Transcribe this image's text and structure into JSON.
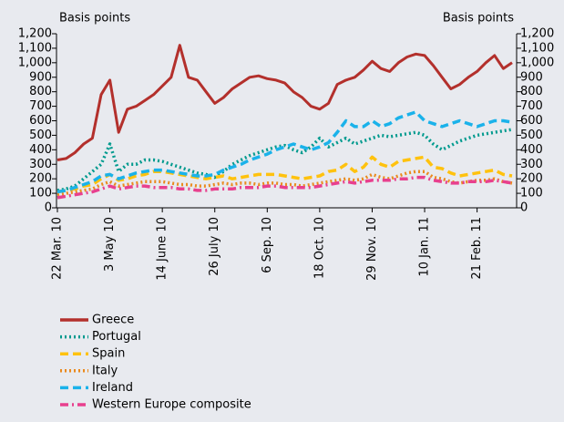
{
  "chart_data": {
    "type": "line",
    "ylabel": "Basis points",
    "y2label": "Basis points",
    "categories": [
      "22 Mar. 10",
      null,
      null,
      null,
      null,
      null,
      "3 May 10",
      null,
      null,
      null,
      null,
      null,
      "14 June 10",
      null,
      null,
      null,
      null,
      null,
      "26 July 10",
      null,
      null,
      null,
      null,
      null,
      "6 Sep. 10",
      null,
      null,
      null,
      null,
      null,
      "18 Oct. 10",
      null,
      null,
      null,
      null,
      null,
      "29 Nov. 10",
      null,
      null,
      null,
      null,
      null,
      "10 Jan. 11",
      null,
      null,
      null,
      null,
      null,
      "21 Feb. 11",
      null,
      null,
      null,
      null
    ],
    "ylim": [
      0,
      1200
    ],
    "yticks": [
      0,
      100,
      200,
      300,
      400,
      500,
      600,
      700,
      800,
      900,
      {
        "value": 1000,
        "label": "1,000"
      },
      {
        "value": 1100,
        "label": "1,100"
      },
      {
        "value": 1200,
        "label": "1,200"
      }
    ],
    "y2lim": [
      0,
      1200
    ],
    "y2ticks": [
      0,
      100,
      200,
      300,
      400,
      500,
      600,
      700,
      800,
      900,
      {
        "value": 1000,
        "label": "1,000"
      },
      {
        "value": 1100,
        "label": "1,100"
      },
      {
        "value": 1200,
        "label": "1,200"
      }
    ],
    "grid": false,
    "legend": "bottom-left",
    "series": [
      {
        "name": "Greece",
        "color": "#b3302c",
        "dash": "solid",
        "values": [
          330,
          340,
          380,
          440,
          480,
          780,
          880,
          520,
          680,
          700,
          740,
          780,
          840,
          900,
          1120,
          900,
          880,
          800,
          720,
          760,
          820,
          860,
          900,
          910,
          890,
          880,
          860,
          800,
          760,
          700,
          680,
          720,
          850,
          880,
          900,
          950,
          1010,
          960,
          940,
          1000,
          1040,
          1060,
          1050,
          980,
          900,
          820,
          850,
          900,
          940,
          1000,
          1050,
          960,
          1000
        ]
      },
      {
        "name": "Portugal",
        "color": "#009a8e",
        "dash": "dotted",
        "values": [
          120,
          130,
          150,
          200,
          250,
          300,
          440,
          250,
          300,
          300,
          330,
          330,
          320,
          300,
          280,
          260,
          240,
          230,
          210,
          250,
          300,
          330,
          360,
          380,
          400,
          420,
          430,
          400,
          380,
          420,
          480,
          420,
          450,
          480,
          440,
          460,
          480,
          500,
          490,
          500,
          510,
          520,
          500,
          440,
          400,
          430,
          460,
          480,
          500,
          510,
          520,
          530,
          540
        ]
      },
      {
        "name": "Spain",
        "color": "#ffc20e",
        "dash": "dashed",
        "values": [
          110,
          120,
          130,
          150,
          160,
          200,
          230,
          190,
          200,
          220,
          230,
          250,
          250,
          240,
          230,
          220,
          210,
          200,
          210,
          220,
          200,
          210,
          220,
          230,
          230,
          230,
          220,
          210,
          200,
          210,
          220,
          250,
          260,
          300,
          250,
          280,
          350,
          300,
          280,
          320,
          330,
          340,
          350,
          280,
          270,
          240,
          220,
          230,
          240,
          250,
          260,
          230,
          220
        ]
      },
      {
        "name": "Italy",
        "color": "#ea8a1e",
        "dash": "dotted",
        "values": [
          90,
          100,
          110,
          120,
          130,
          160,
          180,
          150,
          160,
          170,
          180,
          180,
          180,
          170,
          160,
          160,
          150,
          150,
          160,
          170,
          160,
          170,
          170,
          160,
          170,
          170,
          160,
          160,
          150,
          160,
          170,
          180,
          190,
          200,
          190,
          200,
          230,
          210,
          200,
          220,
          240,
          250,
          250,
          210,
          200,
          180,
          170,
          180,
          190,
          190,
          200,
          180,
          170
        ]
      },
      {
        "name": "Ireland",
        "color": "#1ab2ea",
        "dash": "dashed",
        "values": [
          110,
          120,
          140,
          160,
          180,
          220,
          230,
          200,
          220,
          240,
          250,
          260,
          260,
          250,
          240,
          230,
          220,
          220,
          230,
          260,
          280,
          300,
          330,
          350,
          370,
          400,
          420,
          440,
          420,
          400,
          420,
          450,
          520,
          600,
          560,
          560,
          600,
          560,
          580,
          620,
          640,
          660,
          600,
          580,
          560,
          580,
          600,
          580,
          560,
          580,
          600,
          600,
          590
        ]
      },
      {
        "name": "Western Europe composite",
        "color": "#e8408e",
        "dash": "dashdot",
        "values": [
          70,
          80,
          90,
          100,
          110,
          130,
          150,
          130,
          140,
          150,
          150,
          140,
          140,
          140,
          130,
          130,
          120,
          120,
          130,
          130,
          130,
          140,
          140,
          140,
          150,
          150,
          140,
          140,
          140,
          140,
          150,
          160,
          170,
          180,
          170,
          180,
          190,
          190,
          190,
          200,
          200,
          210,
          210,
          190,
          180,
          170,
          170,
          180,
          180,
          180,
          190,
          180,
          170
        ]
      }
    ]
  }
}
